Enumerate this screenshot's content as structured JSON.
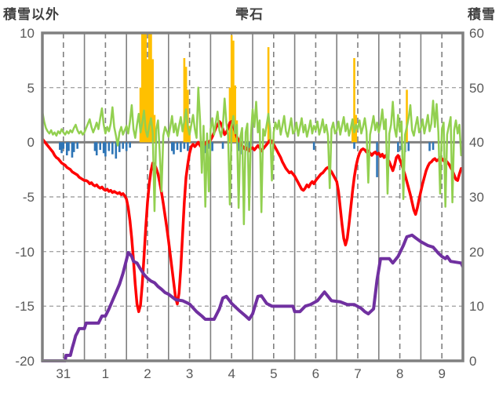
{
  "header": {
    "left_axis_title": "積雪以外",
    "chart_title": "雫石",
    "right_axis_title": "積雪"
  },
  "chart_data": {
    "type": "line",
    "title": "雫石",
    "x_axis": {
      "unit": "day (hourly samples, 10 days)",
      "day_labels": [
        "31",
        "1",
        "2",
        "3",
        "4",
        "5",
        "6",
        "7",
        "8",
        "9"
      ],
      "hours_total": 240,
      "solid_gridlines_every_hours": 24,
      "dashed_gridlines_every_hours": 24,
      "dashed_gridline_offset_hours": 12
    },
    "left_axis": {
      "label": "積雪以外",
      "min": -20,
      "max": 10,
      "ticks": [
        10,
        5,
        0,
        -5,
        -10,
        -15,
        -20
      ],
      "zero_line": "solid thick gray",
      "grid": "dashed at 5,-5,-10,-15"
    },
    "right_axis": {
      "label": "積雪",
      "min": 0,
      "max": 60,
      "ticks": [
        60,
        50,
        40,
        30,
        20,
        10,
        0
      ]
    },
    "colors": {
      "red_line": "#FF0000",
      "green_line": "#92D050",
      "purple_line": "#7030A0",
      "orange_bars": "#FFC000",
      "blue_bars": "#2E75B6",
      "frame": "#808080",
      "grid": "#A6A6A6",
      "tick_text": "#595959",
      "title_text": "#404040"
    },
    "series": [
      {
        "name": "red-line",
        "axis": "left",
        "style": "line",
        "color": "#FF0000",
        "width": 3.5,
        "values": [
          0.3,
          0.1,
          -0.1,
          -0.3,
          -0.5,
          -0.7,
          -0.9,
          -1.2,
          -1.4,
          -1.5,
          -1.7,
          -1.9,
          -2.0,
          -2.1,
          -2.3,
          -2.4,
          -2.5,
          -2.7,
          -2.8,
          -2.9,
          -3.0,
          -3.2,
          -3.3,
          -3.4,
          -3.5,
          -3.5,
          -3.6,
          -3.8,
          -3.7,
          -3.9,
          -4.0,
          -3.9,
          -4.1,
          -4.2,
          -4.1,
          -4.3,
          -4.4,
          -4.3,
          -4.5,
          -4.4,
          -4.6,
          -4.5,
          -4.6,
          -4.7,
          -4.6,
          -4.8,
          -4.7,
          -4.9,
          -5.2,
          -6.0,
          -7.2,
          -8.8,
          -10.8,
          -13.0,
          -14.8,
          -15.5,
          -14.9,
          -13.0,
          -10.5,
          -7.8,
          -5.5,
          -3.8,
          -2.6,
          -1.9,
          -2.0,
          -2.4,
          -2.9,
          -3.7,
          -4.6,
          -5.6,
          -6.7,
          -7.8,
          -9.0,
          -10.3,
          -11.6,
          -12.9,
          -14.2,
          -14.8,
          -13.8,
          -11.5,
          -8.5,
          -5.5,
          -3.2,
          -2.0,
          -1.0,
          -0.4,
          -0.2,
          -0.4,
          -0.2,
          0.0,
          -0.3,
          -0.5,
          -0.3,
          -0.1,
          0.1,
          0.0,
          0.2,
          0.5,
          0.9,
          1.3,
          1.6,
          1.9,
          1.7,
          1.2,
          0.7,
          0.9,
          1.3,
          1.8,
          1.9,
          1.5,
          1.0,
          0.5,
          0.2,
          0.0,
          -0.3,
          -0.5,
          -0.7,
          -0.5,
          -0.8,
          -0.6,
          -0.5,
          -0.7,
          -0.5,
          -0.3,
          -0.5,
          -0.8,
          -0.6,
          -0.4,
          -0.2,
          0.0,
          0.2,
          0.1,
          -0.2,
          -0.5,
          -0.8,
          -1.1,
          -1.4,
          -1.8,
          -2.1,
          -2.4,
          -2.6,
          -2.8,
          -2.7,
          -2.9,
          -3.1,
          -3.4,
          -3.7,
          -4.0,
          -4.3,
          -4.4,
          -4.2,
          -3.9,
          -4.1,
          -3.8,
          -3.6,
          -3.8,
          -3.5,
          -3.3,
          -3.1,
          -2.9,
          -2.8,
          -2.6,
          -2.4,
          -2.3,
          -2.5,
          -2.7,
          -3.0,
          -3.3,
          -3.6,
          -4.5,
          -6.0,
          -7.5,
          -8.8,
          -9.4,
          -8.8,
          -7.5,
          -6.0,
          -4.5,
          -3.2,
          -2.2,
          -1.5,
          -1.0,
          -0.7,
          -0.6,
          -0.7,
          -0.9,
          -0.8,
          -1.0,
          -1.2,
          -1.0,
          -0.9,
          -1.1,
          -1.0,
          -1.3,
          -1.1,
          -1.4,
          -1.2,
          -1.5,
          -1.8,
          -2.2,
          -2.6,
          -2.1,
          -1.4,
          -1.2,
          -1.6,
          -2.0,
          -2.5,
          -3.0,
          -3.6,
          -4.2,
          -4.8,
          -5.5,
          -6.2,
          -6.6,
          -6.0,
          -5.2,
          -4.5,
          -3.8,
          -3.2,
          -2.6,
          -2.2,
          -1.9,
          -1.8,
          -1.6,
          -1.5,
          -1.7,
          -1.6,
          -1.4,
          -1.5,
          -1.7,
          -1.6,
          -1.8,
          -2.0,
          -2.3,
          -2.6,
          -3.0,
          -3.4,
          -3.5,
          -2.9,
          -2.4
        ]
      },
      {
        "name": "green-line",
        "axis": "left",
        "style": "line",
        "color": "#92D050",
        "width": 2.5,
        "values": [
          2.8,
          1.9,
          1.3,
          1.0,
          0.8,
          1.1,
          0.7,
          0.9,
          0.6,
          1.0,
          0.8,
          1.2,
          0.9,
          0.7,
          1.0,
          0.8,
          1.1,
          0.9,
          1.3,
          1.6,
          1.1,
          0.8,
          1.0,
          0.7,
          0.9,
          1.3,
          1.7,
          2.1,
          1.4,
          0.9,
          1.3,
          1.8,
          1.2,
          2.2,
          3.1,
          1.6,
          0.8,
          1.4,
          1.0,
          1.7,
          3.2,
          1.4,
          0.6,
          -0.3,
          0.9,
          1.4,
          0.7,
          1.1,
          1.5,
          0.8,
          1.9,
          3.4,
          1.2,
          0.4,
          1.6,
          2.6,
          0.9,
          1.8,
          2.9,
          1.1,
          0.5,
          1.5,
          2.2,
          0.8,
          -6.3,
          1.2,
          2.0,
          -1.0,
          -4.5,
          0.6,
          1.4,
          1.0,
          0.5,
          1.4,
          2.4,
          0.9,
          1.7,
          0.6,
          1.5,
          2.3,
          1.0,
          1.9,
          3.0,
          1.4,
          0.7,
          1.6,
          2.5,
          1.2,
          0.4,
          5.0,
          2.0,
          -2.8,
          1.5,
          -5.9,
          0.8,
          -4.5,
          1.2,
          2.2,
          0.7,
          1.8,
          2.8,
          1.1,
          0.5,
          1.5,
          4.0,
          1.8,
          0.6,
          -5.7,
          1.4,
          2.4,
          0.8,
          1.6,
          -6.0,
          0.5,
          1.3,
          -7.5,
          0.9,
          1.7,
          -6.2,
          0.6,
          3.0,
          1.4,
          3.7,
          0.9,
          2.0,
          -6.4,
          1.2,
          0.6,
          1.6,
          2.6,
          1.1,
          -3.5,
          0.9,
          1.8,
          1.2,
          2.0,
          0.7,
          1.5,
          2.4,
          1.0,
          0.5,
          1.3,
          2.2,
          0.8,
          1.0,
          1.8,
          0.6,
          1.4,
          2.2,
          0.9,
          1.6,
          0.5,
          1.2,
          2.0,
          0.8,
          1.5,
          1.1,
          1.9,
          0.7,
          1.3,
          2.1,
          0.9,
          1.6,
          0.6,
          -4.2,
          1.2,
          1.8,
          0.8,
          1.1,
          1.9,
          0.7,
          1.5,
          2.3,
          1.0,
          1.7,
          0.6,
          1.3,
          2.1,
          0.9,
          1.6,
          1.2,
          2.0,
          0.8,
          1.4,
          2.2,
          1.0,
          -3.7,
          0.7,
          1.5,
          2.4,
          1.1,
          1.8,
          0.9,
          1.7,
          3.0,
          1.2,
          2.1,
          -4.7,
          0.8,
          1.6,
          3.7,
          1.3,
          0.5,
          2.5,
          1.0,
          1.9,
          -5.2,
          0.7,
          1.4,
          2.2,
          3.4,
          1.1,
          0.6,
          1.5,
          2.3,
          0.9,
          1.3,
          2.1,
          0.8,
          1.6,
          2.5,
          1.0,
          1.7,
          3.8,
          1.4,
          3.5,
          0.9,
          -4.7,
          1.2,
          1.8,
          -5.9,
          0.7,
          1.5,
          2.3,
          -5.5,
          1.1,
          2.0,
          0.8,
          1.6,
          -1.2
        ]
      },
      {
        "name": "purple-snow-line",
        "axis": "right",
        "style": "line",
        "color": "#7030A0",
        "width": 4,
        "points": [
          [
            0,
            0
          ],
          [
            13,
            0
          ],
          [
            13.5,
            1
          ],
          [
            16,
            1
          ],
          [
            17,
            2.3
          ],
          [
            18,
            3.4
          ],
          [
            19,
            4.6
          ],
          [
            20,
            5.2
          ],
          [
            21,
            5.9
          ],
          [
            24,
            5.9
          ],
          [
            25,
            6.9
          ],
          [
            32,
            6.9
          ],
          [
            34,
            8.2
          ],
          [
            36,
            8.2
          ],
          [
            38,
            9.5
          ],
          [
            40,
            11
          ],
          [
            42,
            12.5
          ],
          [
            44,
            14
          ],
          [
            46,
            16
          ],
          [
            48,
            18.5
          ],
          [
            49,
            19.8
          ],
          [
            50,
            19.5
          ],
          [
            51,
            19.1
          ],
          [
            52,
            18.2
          ],
          [
            54,
            17.9
          ],
          [
            56,
            16.8
          ],
          [
            58,
            15.8
          ],
          [
            60,
            15.1
          ],
          [
            62,
            14.6
          ],
          [
            64,
            14.3
          ],
          [
            66,
            13.6
          ],
          [
            68,
            13.1
          ],
          [
            70,
            12.5
          ],
          [
            72,
            12.2
          ],
          [
            76,
            11.2
          ],
          [
            80,
            11.0
          ],
          [
            84,
            10.4
          ],
          [
            88,
            9.0
          ],
          [
            91,
            8.2
          ],
          [
            93,
            7.6
          ],
          [
            98,
            7.6
          ],
          [
            101,
            9.5
          ],
          [
            103,
            11.5
          ],
          [
            105,
            11.8
          ],
          [
            108,
            10.5
          ],
          [
            112,
            9.3
          ],
          [
            116,
            8.2
          ],
          [
            118,
            7.6
          ],
          [
            120,
            8.6
          ],
          [
            123,
            11.8
          ],
          [
            125,
            11.9
          ],
          [
            128,
            10.5
          ],
          [
            131,
            10.0
          ],
          [
            143,
            10.0
          ],
          [
            144,
            9.0
          ],
          [
            147,
            9.0
          ],
          [
            150,
            10.0
          ],
          [
            153,
            10.3
          ],
          [
            157,
            11.0
          ],
          [
            161,
            12.6
          ],
          [
            163,
            11.8
          ],
          [
            165,
            11.0
          ],
          [
            170,
            10.8
          ],
          [
            174,
            10.3
          ],
          [
            178,
            10.3
          ],
          [
            182,
            9.6
          ],
          [
            184,
            9.0
          ],
          [
            186,
            8.6
          ],
          [
            189,
            9.5
          ],
          [
            191,
            14.8
          ],
          [
            193,
            18.7
          ],
          [
            198,
            18.7
          ],
          [
            200,
            17.9
          ],
          [
            203,
            19.1
          ],
          [
            206,
            21.1
          ],
          [
            208,
            22.7
          ],
          [
            211,
            23.0
          ],
          [
            213,
            22.5
          ],
          [
            216,
            21.8
          ],
          [
            220,
            21.1
          ],
          [
            223,
            20.8
          ],
          [
            226,
            19.7
          ],
          [
            228,
            19.1
          ],
          [
            230,
            18.7
          ],
          [
            231,
            19.1
          ],
          [
            233,
            18.2
          ],
          [
            239,
            17.9
          ],
          [
            240,
            17.2
          ]
        ]
      },
      {
        "name": "orange-bars",
        "axis": "left",
        "style": "bar",
        "color": "#FFC000",
        "bar_width": 2.6,
        "bars": [
          [
            56,
            5.0
          ],
          [
            57,
            10
          ],
          [
            58,
            10
          ],
          [
            59,
            10
          ],
          [
            60,
            7.6
          ],
          [
            61,
            10
          ],
          [
            62,
            10
          ],
          [
            63,
            7.6
          ],
          [
            64,
            2.5
          ],
          [
            81,
            7.7
          ],
          [
            82,
            6.9
          ],
          [
            83,
            4.8
          ],
          [
            84,
            1.5
          ],
          [
            107,
            5.0
          ],
          [
            108,
            9.8
          ],
          [
            109,
            9.3
          ],
          [
            110,
            5.2
          ],
          [
            111,
            2.0
          ],
          [
            129,
            8.7
          ],
          [
            177,
            2.0
          ],
          [
            178,
            7.7
          ],
          [
            179,
            2.5
          ],
          [
            208,
            4.8
          ]
        ]
      },
      {
        "name": "blue-bars",
        "axis": "left",
        "style": "bar",
        "color": "#2E75B6",
        "bar_width": 2.6,
        "bars": [
          [
            10,
            -0.7
          ],
          [
            11,
            -1.0
          ],
          [
            12,
            -0.6
          ],
          [
            14,
            -1.2
          ],
          [
            15,
            -0.8
          ],
          [
            17,
            -1.4
          ],
          [
            18,
            -0.9
          ],
          [
            20,
            -0.6
          ],
          [
            30,
            -0.8
          ],
          [
            31,
            -1.2
          ],
          [
            33,
            -0.7
          ],
          [
            35,
            -1.0
          ],
          [
            36,
            -1.3
          ],
          [
            38,
            -0.8
          ],
          [
            40,
            -1.1
          ],
          [
            42,
            -1.5
          ],
          [
            44,
            -0.9
          ],
          [
            46,
            -0.6
          ],
          [
            48,
            -0.8
          ],
          [
            50,
            -0.5
          ],
          [
            74,
            -0.8
          ],
          [
            75,
            -1.1
          ],
          [
            77,
            -0.7
          ],
          [
            79,
            -0.9
          ],
          [
            81,
            -0.6
          ],
          [
            83,
            -0.8
          ],
          [
            91,
            -0.7
          ],
          [
            93,
            -1.0
          ],
          [
            95,
            -0.6
          ],
          [
            97,
            -0.8
          ],
          [
            103,
            -0.6
          ],
          [
            112,
            -0.8
          ],
          [
            114,
            -1.1
          ],
          [
            116,
            -0.7
          ],
          [
            118,
            -0.9
          ],
          [
            155,
            -0.7
          ],
          [
            178,
            -0.6
          ],
          [
            191,
            -3.2
          ],
          [
            203,
            -0.9
          ],
          [
            205,
            -0.7
          ],
          [
            207,
            -0.9
          ],
          [
            209,
            -0.8
          ],
          [
            221,
            -0.8
          ],
          [
            223,
            -0.7
          ]
        ]
      }
    ]
  }
}
